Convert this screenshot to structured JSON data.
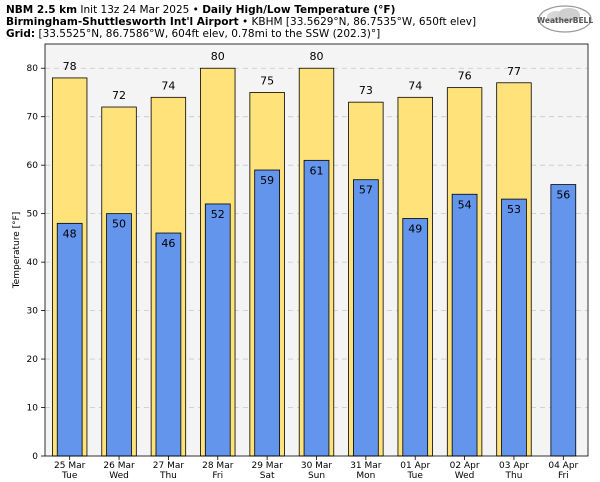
{
  "header": {
    "model": "NBM 2.5 km",
    "init": "Init 13z 24 Mar 2025",
    "bullet": "•",
    "product": "Daily High/Low Temperature (°F)",
    "station_name": "Birmingham-Shuttlesworth Int'l Airport",
    "station_info": "KBHM [33.5629°N, 86.7535°W, 650ft elev]",
    "grid_label": "Grid:",
    "grid_info": "[33.5525°N, 86.7586°W, 604ft elev, 0.78mi to the SSW (202.3)°]",
    "logo_text": "WeatherBELL"
  },
  "colors": {
    "high_fill": "#ffe27a",
    "low_fill": "#6495ed",
    "plot_bg": "#f4f4f4",
    "grid": "#c8c8c8"
  },
  "chart_data": {
    "type": "bar",
    "ylabel": "Temperature [°F]",
    "ylim": [
      0,
      85
    ],
    "yticks": [
      0,
      10,
      20,
      30,
      40,
      50,
      60,
      70,
      80
    ],
    "grid": true,
    "categories": [
      {
        "date": "25 Mar",
        "day": "Tue"
      },
      {
        "date": "26 Mar",
        "day": "Wed"
      },
      {
        "date": "27 Mar",
        "day": "Thu"
      },
      {
        "date": "28 Mar",
        "day": "Fri"
      },
      {
        "date": "29 Mar",
        "day": "Sat"
      },
      {
        "date": "30 Mar",
        "day": "Sun"
      },
      {
        "date": "31 Mar",
        "day": "Mon"
      },
      {
        "date": "01 Apr",
        "day": "Tue"
      },
      {
        "date": "02 Apr",
        "day": "Wed"
      },
      {
        "date": "03 Apr",
        "day": "Thu"
      },
      {
        "date": "04 Apr",
        "day": "Fri"
      }
    ],
    "series": [
      {
        "key": "high",
        "values": [
          78,
          72,
          74,
          80,
          75,
          80,
          73,
          74,
          76,
          77,
          null
        ]
      },
      {
        "key": "low",
        "values": [
          48,
          50,
          46,
          52,
          59,
          61,
          57,
          49,
          54,
          53,
          56
        ]
      }
    ]
  }
}
